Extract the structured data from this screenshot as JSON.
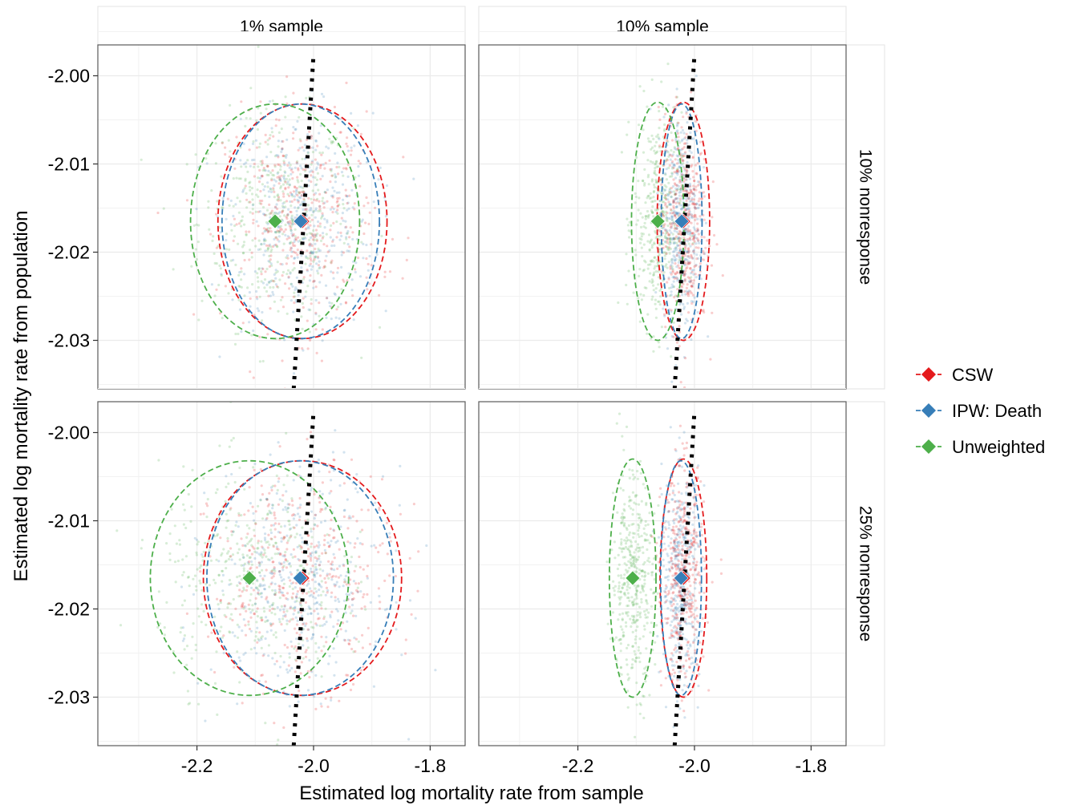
{
  "chart_data": {
    "type": "scatter",
    "xlabel": "Estimated log mortality rate from sample",
    "ylabel": "Estimated log mortality rate from population",
    "xlim": [
      -2.37,
      -1.74
    ],
    "ylim": [
      -2.0355,
      -1.9965
    ],
    "x_ticks": [
      -2.2,
      -2.0,
      -1.8
    ],
    "x_tick_labels": [
      "-2.2",
      "-2.0",
      "-1.8"
    ],
    "y_ticks": [
      -2.0,
      -2.01,
      -2.02,
      -2.03
    ],
    "y_tick_labels": [
      "-2.00",
      "-2.01",
      "-2.02",
      "-2.03"
    ],
    "grid": true,
    "legend_position": "right",
    "columns": [
      "1% sample",
      "10% sample"
    ],
    "rows": [
      "10% nonresponse",
      "25% nonresponse"
    ],
    "series": [
      {
        "name": "CSW",
        "color": "#e41a1c"
      },
      {
        "name": "IPW: Death",
        "color": "#377eb8"
      },
      {
        "name": "Unweighted",
        "color": "#4daf4a"
      }
    ],
    "reference_line": {
      "style": "dotted",
      "color": "#000000",
      "points": [
        [
          -2.034,
          -2.0355
        ],
        [
          -2.0,
          -1.9975
        ]
      ]
    },
    "panels": [
      {
        "row": 0,
        "col": 0,
        "estimates": [
          {
            "series": "CSW",
            "x": -2.019,
            "y": -2.0165,
            "ellipse_rx": 0.145,
            "ellipse_ry": 0.0133
          },
          {
            "series": "IPW: Death",
            "x": -2.022,
            "y": -2.0165,
            "ellipse_rx": 0.135,
            "ellipse_ry": 0.0133
          },
          {
            "series": "Unweighted",
            "x": -2.066,
            "y": -2.0165,
            "ellipse_rx": 0.145,
            "ellipse_ry": 0.0133
          }
        ]
      },
      {
        "row": 0,
        "col": 1,
        "estimates": [
          {
            "series": "CSW",
            "x": -2.019,
            "y": -2.0165,
            "ellipse_rx": 0.045,
            "ellipse_ry": 0.0135
          },
          {
            "series": "IPW: Death",
            "x": -2.022,
            "y": -2.0165,
            "ellipse_rx": 0.035,
            "ellipse_ry": 0.0133
          },
          {
            "series": "Unweighted",
            "x": -2.063,
            "y": -2.0165,
            "ellipse_rx": 0.045,
            "ellipse_ry": 0.0135
          }
        ]
      },
      {
        "row": 1,
        "col": 0,
        "estimates": [
          {
            "series": "CSW",
            "x": -2.019,
            "y": -2.0165,
            "ellipse_rx": 0.17,
            "ellipse_ry": 0.0133
          },
          {
            "series": "IPW: Death",
            "x": -2.023,
            "y": -2.0165,
            "ellipse_rx": 0.16,
            "ellipse_ry": 0.0133
          },
          {
            "series": "Unweighted",
            "x": -2.11,
            "y": -2.0165,
            "ellipse_rx": 0.17,
            "ellipse_ry": 0.0133
          }
        ]
      },
      {
        "row": 1,
        "col": 1,
        "estimates": [
          {
            "series": "CSW",
            "x": -2.019,
            "y": -2.0165,
            "ellipse_rx": 0.04,
            "ellipse_ry": 0.0135
          },
          {
            "series": "IPW: Death",
            "x": -2.023,
            "y": -2.0165,
            "ellipse_rx": 0.035,
            "ellipse_ry": 0.0133
          },
          {
            "series": "Unweighted",
            "x": -2.106,
            "y": -2.0165,
            "ellipse_rx": 0.04,
            "ellipse_ry": 0.0135
          }
        ]
      }
    ]
  }
}
